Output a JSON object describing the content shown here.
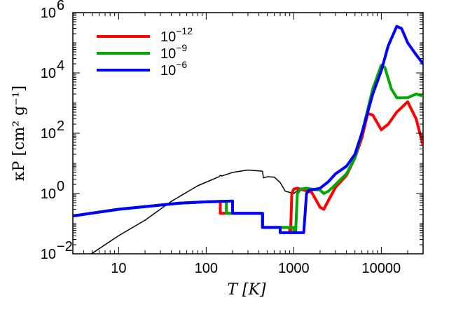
{
  "chart_data": {
    "type": "line",
    "xlabel": "T [K]",
    "ylabel": "κP [cm² g⁻¹]",
    "xscale": "log",
    "yscale": "log",
    "xlim": [
      3,
      30000
    ],
    "ylim": [
      0.01,
      1000000
    ],
    "grid": false,
    "legend_position": "top-left",
    "x_ticks": [
      {
        "value": 10,
        "label": "10"
      },
      {
        "value": 100,
        "label": "100"
      },
      {
        "value": 1000,
        "label": "1000"
      },
      {
        "value": 10000,
        "label": "10000"
      }
    ],
    "y_ticks": [
      {
        "value": 0.01,
        "base": "10",
        "exp": "−2"
      },
      {
        "value": 1,
        "base": "10",
        "exp": "0"
      },
      {
        "value": 100,
        "base": "10",
        "exp": "2"
      },
      {
        "value": 10000,
        "base": "10",
        "exp": "4"
      },
      {
        "value": 1000000,
        "base": "10",
        "exp": "6"
      }
    ],
    "series": [
      {
        "color": "#000000",
        "points": [
          [
            4.9,
            0.01
          ],
          [
            10,
            0.04
          ],
          [
            20,
            0.13
          ],
          [
            40,
            0.55
          ],
          [
            80,
            1.8
          ],
          [
            140,
            3.6
          ],
          [
            145,
            4.0
          ],
          [
            150,
            3.8
          ],
          [
            200,
            5.0
          ],
          [
            300,
            6.0
          ],
          [
            400,
            5.6
          ],
          [
            440,
            5.5
          ],
          [
            450,
            3.3
          ],
          [
            500,
            3.6
          ],
          [
            600,
            3.5
          ],
          [
            700,
            2.3
          ],
          [
            800,
            1.2
          ],
          [
            1000,
            1.0
          ],
          [
            1100,
            1.25
          ],
          [
            1200,
            1.5
          ]
        ]
      },
      {
        "name": "10−12",
        "color": "#ff0000",
        "points": [
          [
            3,
            0.18
          ],
          [
            10,
            0.3
          ],
          [
            50,
            0.48
          ],
          [
            100,
            0.53
          ],
          [
            145,
            0.55
          ],
          [
            145,
            0.22
          ],
          [
            160,
            0.22
          ],
          [
            440,
            0.22
          ],
          [
            440,
            0.075
          ],
          [
            900,
            0.075
          ],
          [
            900,
            0.05
          ],
          [
            920,
            0.05
          ],
          [
            950,
            1.0
          ],
          [
            1000,
            1.4
          ],
          [
            1100,
            1.5
          ],
          [
            1300,
            1.3
          ],
          [
            1600,
            1.1
          ],
          [
            2000,
            0.35
          ],
          [
            2200,
            0.3
          ],
          [
            2500,
            0.6
          ],
          [
            3000,
            1.6
          ],
          [
            4000,
            4.0
          ],
          [
            5000,
            15
          ],
          [
            6000,
            70
          ],
          [
            7000,
            450
          ],
          [
            8000,
            400
          ],
          [
            10000,
            130
          ],
          [
            12000,
            200
          ],
          [
            15000,
            500
          ],
          [
            20000,
            1100
          ],
          [
            25000,
            300
          ],
          [
            30000,
            40
          ]
        ]
      },
      {
        "name": "10−9",
        "color": "#00aa00",
        "points": [
          [
            3,
            0.18
          ],
          [
            10,
            0.3
          ],
          [
            50,
            0.48
          ],
          [
            100,
            0.53
          ],
          [
            170,
            0.55
          ],
          [
            170,
            0.22
          ],
          [
            180,
            0.22
          ],
          [
            440,
            0.22
          ],
          [
            440,
            0.075
          ],
          [
            1000,
            0.075
          ],
          [
            1000,
            0.05
          ],
          [
            1050,
            0.05
          ],
          [
            1100,
            1.0
          ],
          [
            1200,
            1.4
          ],
          [
            1400,
            1.5
          ],
          [
            1700,
            1.35
          ],
          [
            2000,
            1.3
          ],
          [
            2200,
            1.0
          ],
          [
            2500,
            1.2
          ],
          [
            3000,
            2.0
          ],
          [
            4000,
            4.5
          ],
          [
            5000,
            15
          ],
          [
            6000,
            100
          ],
          [
            7000,
            600
          ],
          [
            8000,
            3000
          ],
          [
            10000,
            18000
          ],
          [
            11000,
            15000
          ],
          [
            13000,
            3000
          ],
          [
            15000,
            1500
          ],
          [
            20000,
            1500
          ],
          [
            25000,
            2000
          ],
          [
            30000,
            1700
          ]
        ]
      },
      {
        "name": "10−6",
        "color": "#0000ff",
        "points": [
          [
            3,
            0.18
          ],
          [
            10,
            0.3
          ],
          [
            50,
            0.48
          ],
          [
            100,
            0.53
          ],
          [
            200,
            0.56
          ],
          [
            200,
            0.22
          ],
          [
            210,
            0.22
          ],
          [
            440,
            0.22
          ],
          [
            440,
            0.075
          ],
          [
            700,
            0.075
          ],
          [
            700,
            0.05
          ],
          [
            1300,
            0.05
          ],
          [
            1400,
            1.0
          ],
          [
            1500,
            1.3
          ],
          [
            1800,
            1.4
          ],
          [
            2000,
            1.5
          ],
          [
            2500,
            2.5
          ],
          [
            3000,
            4.5
          ],
          [
            4000,
            8.0
          ],
          [
            5000,
            20
          ],
          [
            6000,
            100
          ],
          [
            7000,
            500
          ],
          [
            8000,
            2000
          ],
          [
            10000,
            12000
          ],
          [
            12000,
            80000
          ],
          [
            15000,
            350000
          ],
          [
            17000,
            300000
          ],
          [
            20000,
            100000
          ],
          [
            25000,
            40000
          ],
          [
            30000,
            20000
          ]
        ]
      }
    ]
  }
}
